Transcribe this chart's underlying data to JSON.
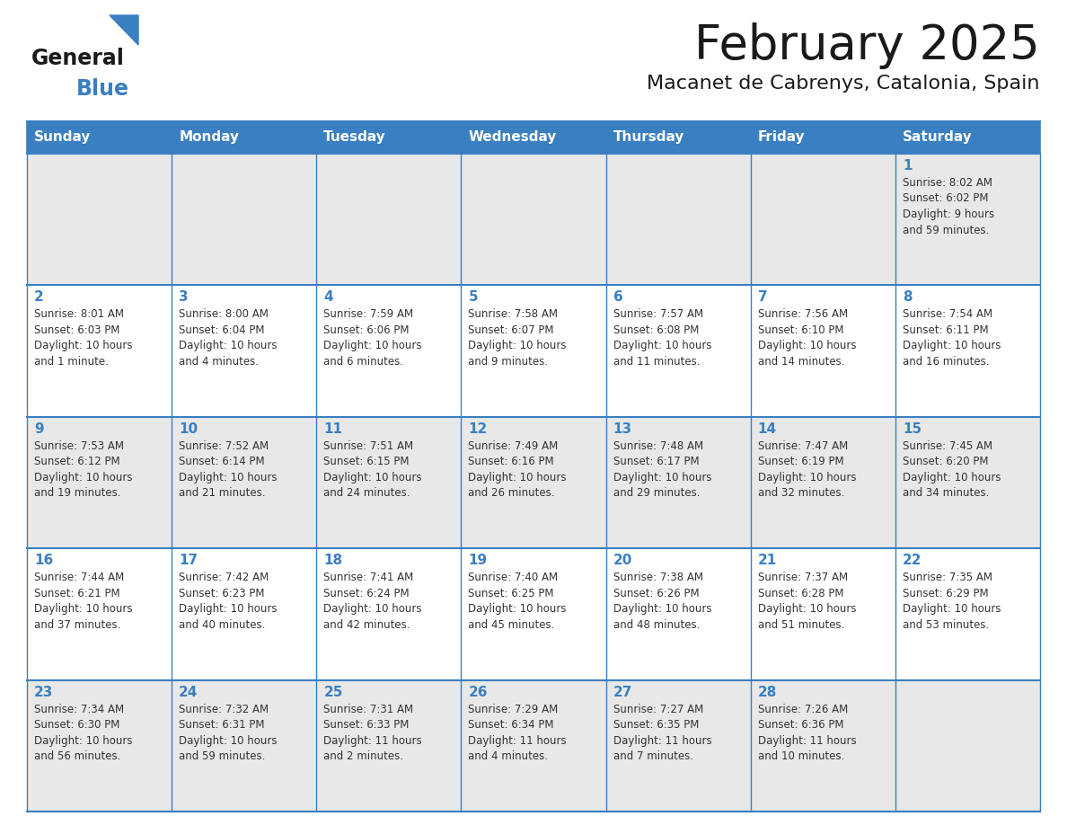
{
  "title": "February 2025",
  "subtitle": "Macanet de Cabrenys, Catalonia, Spain",
  "days_of_week": [
    "Sunday",
    "Monday",
    "Tuesday",
    "Wednesday",
    "Thursday",
    "Friday",
    "Saturday"
  ],
  "header_bg": "#3a7fc1",
  "header_text_color": "#ffffff",
  "cell_bg_odd": "#e8e8e8",
  "cell_bg_even": "#ffffff",
  "border_color": "#3a7fc1",
  "title_color": "#1a1a1a",
  "subtitle_color": "#1a1a1a",
  "day_num_color": "#3a7fc1",
  "cell_text_color": "#333333",
  "logo_general_color": "#1a1a1a",
  "logo_blue_color": "#3a7fc1",
  "weeks": [
    [
      {
        "day": null,
        "sunrise": null,
        "sunset": null,
        "daylight": null
      },
      {
        "day": null,
        "sunrise": null,
        "sunset": null,
        "daylight": null
      },
      {
        "day": null,
        "sunrise": null,
        "sunset": null,
        "daylight": null
      },
      {
        "day": null,
        "sunrise": null,
        "sunset": null,
        "daylight": null
      },
      {
        "day": null,
        "sunrise": null,
        "sunset": null,
        "daylight": null
      },
      {
        "day": null,
        "sunrise": null,
        "sunset": null,
        "daylight": null
      },
      {
        "day": 1,
        "sunrise": "8:02 AM",
        "sunset": "6:02 PM",
        "daylight": "9 hours\nand 59 minutes."
      }
    ],
    [
      {
        "day": 2,
        "sunrise": "8:01 AM",
        "sunset": "6:03 PM",
        "daylight": "10 hours\nand 1 minute."
      },
      {
        "day": 3,
        "sunrise": "8:00 AM",
        "sunset": "6:04 PM",
        "daylight": "10 hours\nand 4 minutes."
      },
      {
        "day": 4,
        "sunrise": "7:59 AM",
        "sunset": "6:06 PM",
        "daylight": "10 hours\nand 6 minutes."
      },
      {
        "day": 5,
        "sunrise": "7:58 AM",
        "sunset": "6:07 PM",
        "daylight": "10 hours\nand 9 minutes."
      },
      {
        "day": 6,
        "sunrise": "7:57 AM",
        "sunset": "6:08 PM",
        "daylight": "10 hours\nand 11 minutes."
      },
      {
        "day": 7,
        "sunrise": "7:56 AM",
        "sunset": "6:10 PM",
        "daylight": "10 hours\nand 14 minutes."
      },
      {
        "day": 8,
        "sunrise": "7:54 AM",
        "sunset": "6:11 PM",
        "daylight": "10 hours\nand 16 minutes."
      }
    ],
    [
      {
        "day": 9,
        "sunrise": "7:53 AM",
        "sunset": "6:12 PM",
        "daylight": "10 hours\nand 19 minutes."
      },
      {
        "day": 10,
        "sunrise": "7:52 AM",
        "sunset": "6:14 PM",
        "daylight": "10 hours\nand 21 minutes."
      },
      {
        "day": 11,
        "sunrise": "7:51 AM",
        "sunset": "6:15 PM",
        "daylight": "10 hours\nand 24 minutes."
      },
      {
        "day": 12,
        "sunrise": "7:49 AM",
        "sunset": "6:16 PM",
        "daylight": "10 hours\nand 26 minutes."
      },
      {
        "day": 13,
        "sunrise": "7:48 AM",
        "sunset": "6:17 PM",
        "daylight": "10 hours\nand 29 minutes."
      },
      {
        "day": 14,
        "sunrise": "7:47 AM",
        "sunset": "6:19 PM",
        "daylight": "10 hours\nand 32 minutes."
      },
      {
        "day": 15,
        "sunrise": "7:45 AM",
        "sunset": "6:20 PM",
        "daylight": "10 hours\nand 34 minutes."
      }
    ],
    [
      {
        "day": 16,
        "sunrise": "7:44 AM",
        "sunset": "6:21 PM",
        "daylight": "10 hours\nand 37 minutes."
      },
      {
        "day": 17,
        "sunrise": "7:42 AM",
        "sunset": "6:23 PM",
        "daylight": "10 hours\nand 40 minutes."
      },
      {
        "day": 18,
        "sunrise": "7:41 AM",
        "sunset": "6:24 PM",
        "daylight": "10 hours\nand 42 minutes."
      },
      {
        "day": 19,
        "sunrise": "7:40 AM",
        "sunset": "6:25 PM",
        "daylight": "10 hours\nand 45 minutes."
      },
      {
        "day": 20,
        "sunrise": "7:38 AM",
        "sunset": "6:26 PM",
        "daylight": "10 hours\nand 48 minutes."
      },
      {
        "day": 21,
        "sunrise": "7:37 AM",
        "sunset": "6:28 PM",
        "daylight": "10 hours\nand 51 minutes."
      },
      {
        "day": 22,
        "sunrise": "7:35 AM",
        "sunset": "6:29 PM",
        "daylight": "10 hours\nand 53 minutes."
      }
    ],
    [
      {
        "day": 23,
        "sunrise": "7:34 AM",
        "sunset": "6:30 PM",
        "daylight": "10 hours\nand 56 minutes."
      },
      {
        "day": 24,
        "sunrise": "7:32 AM",
        "sunset": "6:31 PM",
        "daylight": "10 hours\nand 59 minutes."
      },
      {
        "day": 25,
        "sunrise": "7:31 AM",
        "sunset": "6:33 PM",
        "daylight": "11 hours\nand 2 minutes."
      },
      {
        "day": 26,
        "sunrise": "7:29 AM",
        "sunset": "6:34 PM",
        "daylight": "11 hours\nand 4 minutes."
      },
      {
        "day": 27,
        "sunrise": "7:27 AM",
        "sunset": "6:35 PM",
        "daylight": "11 hours\nand 7 minutes."
      },
      {
        "day": 28,
        "sunrise": "7:26 AM",
        "sunset": "6:36 PM",
        "daylight": "11 hours\nand 10 minutes."
      },
      {
        "day": null,
        "sunrise": null,
        "sunset": null,
        "daylight": null
      }
    ]
  ],
  "fig_width": 11.88,
  "fig_height": 9.18,
  "fig_dpi": 100
}
